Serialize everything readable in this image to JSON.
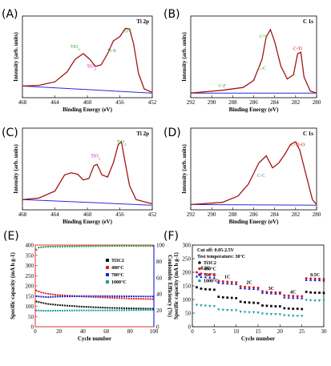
{
  "chart_data": [
    {
      "panel": "(A)",
      "type": "line",
      "tag": "Ti 2p",
      "xlabel": "Binding Energy (eV)",
      "ylabel": "Intensity (arb. units)",
      "xlim": [
        468,
        452
      ],
      "xticks": [
        468,
        464,
        460,
        456,
        452
      ],
      "annotations": [
        {
          "text": "Ti-C",
          "x": 455.0,
          "y": 0.88,
          "color": "#27a327"
        },
        {
          "text": "Ti-X",
          "x": 457.0,
          "y": 0.6,
          "color": "#27a327"
        },
        {
          "text": "TiO2",
          "x": 461.5,
          "y": 0.66,
          "color": "#27a327"
        },
        {
          "text": "TiO2",
          "x": 459.5,
          "y": 0.38,
          "color": "#b01cb0"
        }
      ],
      "series": [
        {
          "values": [
            [
              468,
              0.12
            ],
            [
              466,
              0.13
            ],
            [
              464,
              0.18
            ],
            [
              462.5,
              0.32
            ],
            [
              461.5,
              0.5
            ],
            [
              460.5,
              0.58
            ],
            [
              459.7,
              0.5
            ],
            [
              459,
              0.4
            ],
            [
              458.3,
              0.42
            ],
            [
              457.5,
              0.58
            ],
            [
              456.8,
              0.76
            ],
            [
              456,
              0.82
            ],
            [
              455.3,
              0.94
            ],
            [
              454.8,
              0.93
            ],
            [
              454.3,
              0.72
            ],
            [
              453.7,
              0.3
            ],
            [
              453,
              0.08
            ],
            [
              452,
              0.03
            ]
          ]
        }
      ]
    },
    {
      "panel": "(B)",
      "type": "line",
      "tag": "C 1s",
      "xlabel": "Binding Energy (eV)",
      "ylabel": "Intensity (arb. units)",
      "xlim": [
        292,
        280
      ],
      "xticks": [
        292,
        290,
        288,
        286,
        284,
        282,
        280
      ],
      "annotations": [
        {
          "text": "C=C",
          "x": 285.0,
          "y": 0.8,
          "color": "#27a327"
        },
        {
          "text": "C-C",
          "x": 285.2,
          "y": 0.35,
          "color": "#27a327"
        },
        {
          "text": "C-Ti",
          "x": 281.8,
          "y": 0.63,
          "color": "#c00000"
        },
        {
          "text": "C-F",
          "x": 289.0,
          "y": 0.1,
          "color": "#27a327"
        }
      ],
      "series": [
        {
          "values": [
            [
              292,
              0.02
            ],
            [
              289,
              0.06
            ],
            [
              287,
              0.1
            ],
            [
              286,
              0.2
            ],
            [
              285.2,
              0.5
            ],
            [
              284.8,
              0.82
            ],
            [
              284.4,
              0.92
            ],
            [
              284,
              0.75
            ],
            [
              283.4,
              0.4
            ],
            [
              282.8,
              0.22
            ],
            [
              282.2,
              0.28
            ],
            [
              281.8,
              0.58
            ],
            [
              281.5,
              0.6
            ],
            [
              281.2,
              0.25
            ],
            [
              280.6,
              0.05
            ],
            [
              280,
              0.02
            ]
          ]
        }
      ]
    },
    {
      "panel": "(C)",
      "type": "line",
      "tag": "Ti 2p",
      "xlabel": "Binding Energy (eV)",
      "ylabel": "Intensity (arb. units)",
      "xlim": [
        468,
        452
      ],
      "xticks": [
        468,
        464,
        460,
        456,
        452
      ],
      "annotations": [
        {
          "text": "TiO2",
          "x": 455.8,
          "y": 0.9,
          "color": "#27a327"
        },
        {
          "text": "TiO2",
          "x": 459.0,
          "y": 0.7,
          "color": "#b01cb0"
        }
      ],
      "series": [
        {
          "values": [
            [
              468,
              0.1
            ],
            [
              466,
              0.12
            ],
            [
              464,
              0.22
            ],
            [
              462.8,
              0.45
            ],
            [
              462,
              0.48
            ],
            [
              461.2,
              0.46
            ],
            [
              460.5,
              0.38
            ],
            [
              459.8,
              0.4
            ],
            [
              459.2,
              0.58
            ],
            [
              458.8,
              0.6
            ],
            [
              458.2,
              0.45
            ],
            [
              457.5,
              0.42
            ],
            [
              456.8,
              0.62
            ],
            [
              456.2,
              0.88
            ],
            [
              455.8,
              0.92
            ],
            [
              455.3,
              0.6
            ],
            [
              454.8,
              0.3
            ],
            [
              454,
              0.1
            ],
            [
              452,
              0.04
            ]
          ]
        }
      ]
    },
    {
      "panel": "(D)",
      "type": "line",
      "tag": "C 1s",
      "xlabel": "Binding Energy (eV)",
      "ylabel": "Intensity (arb. units)",
      "xlim": [
        292,
        280
      ],
      "xticks": [
        292,
        290,
        288,
        286,
        284,
        282,
        280
      ],
      "annotations": [
        {
          "text": "C-Ti-O",
          "x": 281.8,
          "y": 0.86,
          "color": "#c00000"
        },
        {
          "text": "C-C",
          "x": 285.3,
          "y": 0.42,
          "color": "#27a327"
        }
      ],
      "series": [
        {
          "values": [
            [
              292,
              0.03
            ],
            [
              289,
              0.06
            ],
            [
              287.5,
              0.15
            ],
            [
              286.5,
              0.32
            ],
            [
              285.5,
              0.62
            ],
            [
              284.8,
              0.72
            ],
            [
              284.2,
              0.55
            ],
            [
              283.6,
              0.62
            ],
            [
              283,
              0.75
            ],
            [
              282.5,
              0.88
            ],
            [
              282,
              0.92
            ],
            [
              281.6,
              0.8
            ],
            [
              281,
              0.45
            ],
            [
              280.4,
              0.1
            ],
            [
              280,
              0.03
            ]
          ]
        }
      ]
    },
    {
      "panel": "(E)",
      "type": "scatter",
      "xlabel": "Cycle number",
      "ylabel": "Specific capacity (mA h g-1)",
      "y2label": "Coulombic Efficiency (%)",
      "xlim": [
        0,
        100
      ],
      "ylim": [
        0,
        400
      ],
      "y2lim": [
        0,
        100
      ],
      "xticks": [
        0,
        20,
        40,
        60,
        80,
        100
      ],
      "yticks": [
        0,
        50,
        100,
        150,
        200,
        250,
        300,
        350,
        400
      ],
      "y2ticks": [
        0,
        20,
        40,
        60,
        80,
        100
      ],
      "legend": "right",
      "series": [
        {
          "name": "Ti3C2",
          "color": "#111111",
          "values": [
            [
              0,
              125
            ],
            [
              10,
              112
            ],
            [
              20,
              106
            ],
            [
              40,
              98
            ],
            [
              60,
              93
            ],
            [
              80,
              90
            ],
            [
              100,
              88
            ]
          ]
        },
        {
          "name": "400°C",
          "color": "#e02020",
          "values": [
            [
              0,
              180
            ],
            [
              5,
              168
            ],
            [
              10,
              162
            ],
            [
              20,
              155
            ],
            [
              40,
              148
            ],
            [
              60,
              143
            ],
            [
              80,
              138
            ],
            [
              100,
              135
            ]
          ]
        },
        {
          "name": "700°C",
          "color": "#2020d0",
          "values": [
            [
              0,
              150
            ],
            [
              10,
              145
            ],
            [
              20,
              148
            ],
            [
              40,
              150
            ],
            [
              60,
              150
            ],
            [
              80,
              149
            ],
            [
              100,
              148
            ]
          ]
        },
        {
          "name": "1000°C",
          "color": "#1aa0a0",
          "values": [
            [
              0,
              80
            ],
            [
              10,
              78
            ],
            [
              20,
              79
            ],
            [
              40,
              80
            ],
            [
              60,
              80
            ],
            [
              80,
              81
            ],
            [
              100,
              82
            ]
          ]
        },
        {
          "name": "Coulombic Efficiency",
          "axis": "y2",
          "color": "#2a9a40",
          "values": [
            [
              0,
              93
            ],
            [
              3,
              97
            ],
            [
              10,
              98
            ],
            [
              40,
              98.5
            ],
            [
              70,
              99
            ],
            [
              100,
              99
            ]
          ]
        }
      ]
    },
    {
      "panel": "(F)",
      "type": "scatter",
      "xlabel": "Cycle number",
      "ylabel": "Specific capacity (mA h g-1)",
      "xlim": [
        0,
        30
      ],
      "ylim": [
        0,
        300
      ],
      "xticks": [
        0,
        5,
        10,
        15,
        20,
        25,
        30
      ],
      "yticks": [
        0,
        50,
        100,
        150,
        200,
        250,
        300
      ],
      "legend": "top-left",
      "info": [
        "Cut off: 0.05-2.5V",
        "Test temperature: 30°C"
      ],
      "rate_labels": [
        {
          "text": "0.5C",
          "x": 3,
          "y": 210
        },
        {
          "text": "1C",
          "x": 8,
          "y": 178
        },
        {
          "text": "2C",
          "x": 13,
          "y": 158
        },
        {
          "text": "3C",
          "x": 18,
          "y": 135
        },
        {
          "text": "4C",
          "x": 23,
          "y": 122
        },
        {
          "text": "0.5C",
          "x": 28,
          "y": 185
        }
      ],
      "cycles": [
        1,
        2,
        3,
        4,
        5,
        6,
        7,
        8,
        9,
        10,
        11,
        12,
        13,
        14,
        15,
        16,
        17,
        18,
        19,
        20,
        21,
        22,
        23,
        24,
        25,
        26,
        27,
        28,
        29,
        30
      ],
      "series": [
        {
          "name": "Ti3C2",
          "color": "#111111",
          "marker": "square",
          "values": [
            145,
            140,
            138,
            137,
            136,
            110,
            108,
            107,
            106,
            105,
            92,
            90,
            89,
            88,
            87,
            78,
            77,
            76,
            75,
            75,
            68,
            67,
            66,
            66,
            65,
            128,
            126,
            125,
            125,
            124
          ]
        },
        {
          "name": "400°C",
          "color": "#e02020",
          "marker": "circle",
          "values": [
            200,
            195,
            193,
            192,
            190,
            168,
            166,
            165,
            164,
            163,
            148,
            146,
            145,
            144,
            143,
            130,
            128,
            127,
            126,
            126,
            115,
            114,
            113,
            112,
            112,
            178,
            177,
            176,
            176,
            175
          ]
        },
        {
          "name": "700°C",
          "color": "#2020d0",
          "marker": "triangle-up",
          "values": [
            185,
            183,
            182,
            181,
            180,
            162,
            160,
            159,
            158,
            157,
            142,
            141,
            140,
            139,
            138,
            125,
            124,
            123,
            122,
            122,
            108,
            107,
            106,
            106,
            105,
            172,
            172,
            171,
            171,
            170
          ]
        },
        {
          "name": "1000°C",
          "color": "#1aa0a0",
          "marker": "triangle-down",
          "values": [
            80,
            78,
            77,
            76,
            75,
            63,
            62,
            61,
            60,
            60,
            55,
            54,
            53,
            53,
            52,
            48,
            47,
            46,
            46,
            45,
            42,
            41,
            40,
            40,
            40,
            98,
            97,
            96,
            96,
            95
          ]
        }
      ]
    }
  ]
}
